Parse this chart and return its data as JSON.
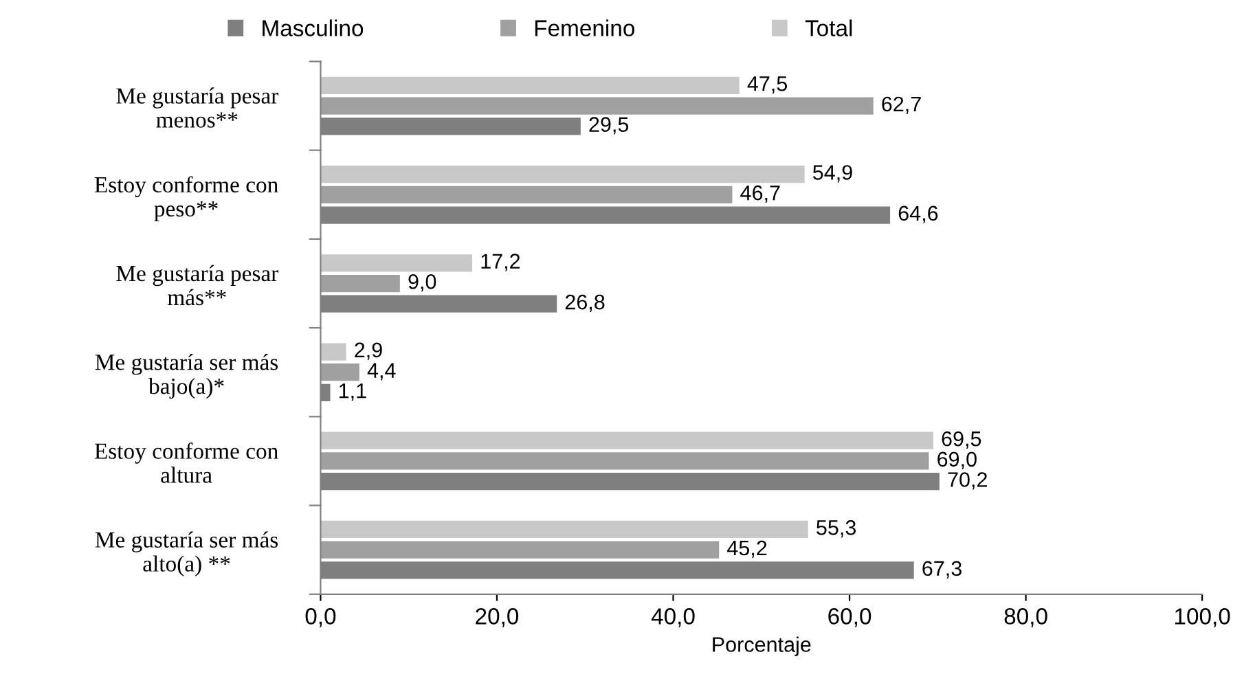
{
  "chart_data": {
    "type": "bar",
    "orientation": "horizontal",
    "xlabel": "Porcentaje",
    "categories": [
      "Me gustaría pesar\nmenos**",
      "Estoy conforme con\npeso**",
      "Me gustaría pesar\nmás**",
      "Me gustaría ser más\nbajo(a)*",
      "Estoy conforme con\naltura",
      "Me gustaría ser más\nalto(a) **"
    ],
    "series": [
      {
        "name": "Masculino",
        "color": "#7f7f7f",
        "values": [
          29.5,
          64.6,
          26.8,
          1.1,
          70.2,
          67.3
        ],
        "value_labels": [
          "29,5",
          "64,6",
          "26,8",
          "1,1",
          "70,2",
          "67,3"
        ]
      },
      {
        "name": "Femenino",
        "color": "#a0a0a0",
        "values": [
          62.7,
          46.7,
          9.0,
          4.4,
          69.0,
          45.2
        ],
        "value_labels": [
          "62,7",
          "46,7",
          "9,0",
          "4,4",
          "69,0",
          "45,2"
        ]
      },
      {
        "name": "Total",
        "color": "#c8c8c8",
        "values": [
          47.5,
          54.9,
          17.2,
          2.9,
          69.5,
          55.3
        ],
        "value_labels": [
          "47,5",
          "54,9",
          "17,2",
          "2,9",
          "69,5",
          "55,3"
        ]
      }
    ],
    "xlim": [
      0,
      100
    ],
    "xticks": [
      {
        "value": 0,
        "label": "0,0"
      },
      {
        "value": 20,
        "label": "20,0"
      },
      {
        "value": 40,
        "label": "40,0"
      },
      {
        "value": 60,
        "label": "60,0"
      },
      {
        "value": 80,
        "label": "80,0"
      },
      {
        "value": 100,
        "label": "100,0"
      }
    ],
    "grid": false,
    "legend": "top"
  }
}
